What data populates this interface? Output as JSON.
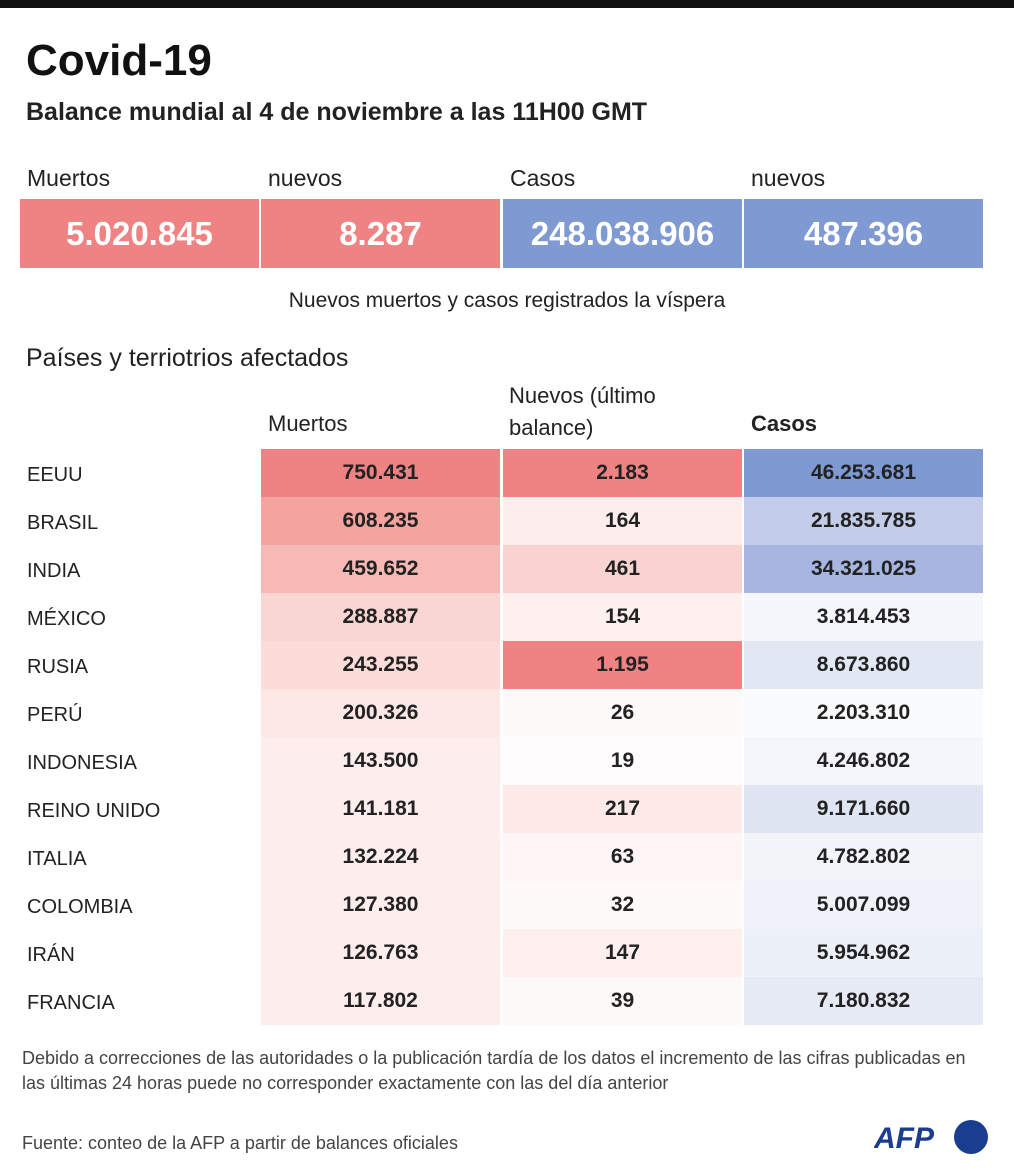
{
  "header": {
    "title": "Covid-19",
    "subtitle": "Balance mundial al 4 de noviembre a las 11H00 GMT"
  },
  "summary": [
    {
      "label": "Muertos",
      "value": "5.020.845"
    },
    {
      "label": "nuevos",
      "value": "8.287"
    },
    {
      "label": "Casos",
      "value": "248.038.906"
    },
    {
      "label": "nuevos",
      "value": "487.396"
    }
  ],
  "note": "Nuevos muertos y casos registrados la víspera",
  "table": {
    "title": "Países y terriotrios afectados",
    "columns": [
      "Muertos",
      "Nuevos (último balance)",
      "Casos"
    ],
    "rows": [
      [
        "EEUU",
        "750.431",
        "2.183",
        "46.253.681"
      ],
      [
        "BRASIL",
        "608.235",
        "164",
        "21.835.785"
      ],
      [
        "INDIA",
        "459.652",
        "461",
        "34.321.025"
      ],
      [
        "MÉXICO",
        "288.887",
        "154",
        "3.814.453"
      ],
      [
        "RUSIA",
        "243.255",
        "1.195",
        "8.673.860"
      ],
      [
        "PERÚ",
        "200.326",
        "26",
        "2.203.310"
      ],
      [
        "INDONESIA",
        "143.500",
        "19",
        "4.246.802"
      ],
      [
        "REINO UNIDO",
        "141.181",
        "217",
        "9.171.660"
      ],
      [
        "ITALIA",
        "132.224",
        "63",
        "4.782.802"
      ],
      [
        "COLOMBIA",
        "127.380",
        "32",
        "5.007.099"
      ],
      [
        "IRÁN",
        "126.763",
        "147",
        "5.954.962"
      ],
      [
        "FRANCIA",
        "117.802",
        "39",
        "7.180.832"
      ]
    ]
  },
  "footnote": "Debido a correcciones de las autoridades o la publicación tardía de los datos el incremento de las cifras publicadas en las últimas 24 horas puede no corresponder exactamente con las del día anterior",
  "source": "Fuente: conteo de la AFP a partir de balances oficiales",
  "logo": "AFP"
}
